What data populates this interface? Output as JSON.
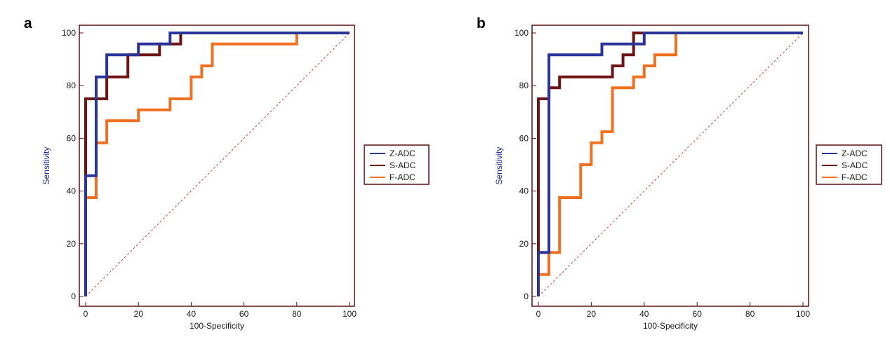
{
  "chart_data": [
    {
      "type": "line",
      "panel_label": "a",
      "xlabel": "100-Specificity",
      "ylabel": "Sensitivity",
      "xlim": [
        0,
        100
      ],
      "ylim": [
        0,
        100
      ],
      "xticks": [
        "0",
        "20",
        "40",
        "60",
        "80",
        "100"
      ],
      "yticks": [
        "0",
        "20",
        "40",
        "60",
        "80",
        "100"
      ],
      "legend_position": "right",
      "reference_line": {
        "x": [
          0,
          100
        ],
        "y": [
          0,
          100
        ],
        "style": "dashed",
        "color": "#c04040"
      },
      "series": [
        {
          "name": "Z-ADC",
          "color": "#2b3499",
          "x": [
            0,
            0,
            4,
            4,
            8,
            8,
            20,
            20,
            32,
            32,
            100
          ],
          "y": [
            0,
            45.8,
            45.8,
            83.3,
            83.3,
            91.7,
            91.7,
            95.8,
            95.8,
            100,
            100
          ]
        },
        {
          "name": "S-ADC",
          "color": "#6e1414",
          "x": [
            0,
            0,
            8,
            8,
            16,
            16,
            28,
            28,
            36,
            36,
            100
          ],
          "y": [
            0,
            75,
            75,
            83.3,
            83.3,
            91.7,
            91.7,
            95.8,
            95.8,
            100,
            100
          ]
        },
        {
          "name": "F-ADC",
          "color": "#f07021",
          "x": [
            0,
            0,
            4,
            4,
            8,
            8,
            20,
            20,
            32,
            32,
            40,
            40,
            44,
            44,
            48,
            48,
            80,
            80,
            100
          ],
          "y": [
            0,
            37.5,
            37.5,
            58.3,
            58.3,
            66.7,
            66.7,
            70.8,
            70.8,
            75,
            75,
            83.3,
            83.3,
            87.5,
            87.5,
            95.8,
            95.8,
            100,
            100
          ]
        }
      ]
    },
    {
      "type": "line",
      "panel_label": "b",
      "xlabel": "100-Specificity",
      "ylabel": "Sensitivity",
      "xlim": [
        0,
        100
      ],
      "ylim": [
        0,
        100
      ],
      "xticks": [
        "0",
        "20",
        "40",
        "60",
        "80",
        "100"
      ],
      "yticks": [
        "0",
        "20",
        "40",
        "60",
        "80",
        "100"
      ],
      "legend_position": "right",
      "reference_line": {
        "x": [
          0,
          100
        ],
        "y": [
          0,
          100
        ],
        "style": "dashed",
        "color": "#c04040"
      },
      "series": [
        {
          "name": "Z-ADC",
          "color": "#2b3499",
          "x": [
            0,
            0,
            4,
            4,
            24,
            24,
            40,
            40,
            100
          ],
          "y": [
            0,
            16.7,
            16.7,
            91.7,
            91.7,
            95.8,
            95.8,
            100,
            100
          ]
        },
        {
          "name": "S-ADC",
          "color": "#6e1414",
          "x": [
            0,
            0,
            4,
            4,
            8,
            8,
            28,
            28,
            32,
            32,
            36,
            36,
            100
          ],
          "y": [
            0,
            75,
            75,
            79.2,
            79.2,
            83.3,
            83.3,
            87.5,
            87.5,
            91.7,
            91.7,
            100,
            100
          ]
        },
        {
          "name": "F-ADC",
          "color": "#f07021",
          "x": [
            0,
            0,
            4,
            4,
            8,
            8,
            16,
            16,
            20,
            20,
            24,
            24,
            28,
            28,
            36,
            36,
            40,
            40,
            44,
            44,
            52,
            52,
            100
          ],
          "y": [
            0,
            8.3,
            8.3,
            16.7,
            16.7,
            37.5,
            37.5,
            50,
            50,
            58.3,
            58.3,
            62.5,
            62.5,
            79.2,
            79.2,
            83.3,
            83.3,
            87.5,
            87.5,
            91.7,
            91.7,
            100,
            100
          ]
        }
      ]
    }
  ]
}
